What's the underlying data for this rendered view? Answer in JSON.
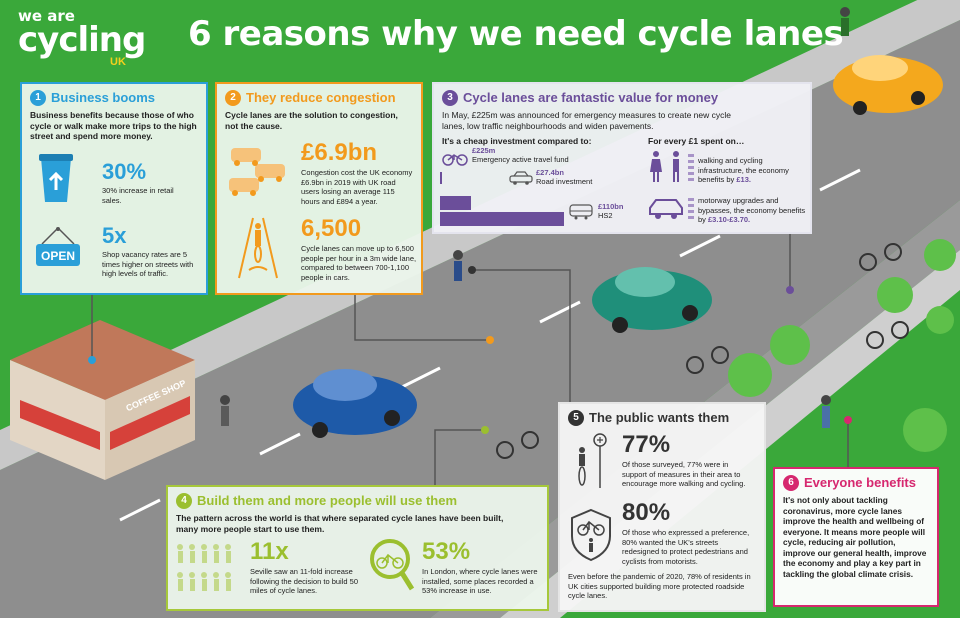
{
  "logo": {
    "line1": "we are",
    "line2": "cycling",
    "line3": "UK"
  },
  "title": "6 reasons why we need cycle lanes",
  "colors": {
    "blue": "#2a9fd8",
    "orange": "#f29a1d",
    "purple": "#6b4e9a",
    "lime": "#9bbf2f",
    "dark": "#333333",
    "magenta": "#d6286f",
    "grass": "#3aa83a"
  },
  "s1": {
    "num": "1",
    "heading": "Business booms",
    "intro": "Business benefits because those of who cycle or walk make more trips to the high street and spend more money.",
    "stat1": "30%",
    "stat1_text": "30% increase in retail sales.",
    "stat2": "5x",
    "stat2_text": "Shop vacancy rates are 5 times higher on streets with high levels of traffic.",
    "icon1": "coffee-cup-icon",
    "icon2": "open-sign-icon",
    "sign_text": "OPEN"
  },
  "s2": {
    "num": "2",
    "heading": "They reduce congestion",
    "intro": "Cycle lanes are the solution to congestion, not the cause.",
    "stat1": "£6.9bn",
    "stat1_text": "Congestion cost the UK economy £6.9bn in 2019 with UK road users losing an average 115 hours and £894 a year.",
    "stat2": "6,500",
    "stat2_text": "Cycle lanes can move up to 6,500 people per hour in a 3m wide lane, compared to between 700-1,100 people in cars.",
    "icon1": "cars-icon",
    "icon2": "cycle-lane-icon"
  },
  "s3": {
    "num": "3",
    "heading": "Cycle lanes are fantastic value for money",
    "intro": "In May, £225m was announced for emergency measures to create new cycle lanes, low traffic neighbourhoods and widen pavements.",
    "compare_heading": "It's a cheap investment compared to:",
    "bars": [
      {
        "value_label": "£225m",
        "label": "Emergency active travel fund",
        "value_bn": 0.225,
        "icon": "bike-icon"
      },
      {
        "value_label": "£27.4bn",
        "label": "Road investment",
        "value_bn": 27.4,
        "icon": "car-icon"
      },
      {
        "value_label": "£110bn",
        "label": "HS2",
        "value_bn": 110,
        "icon": "train-icon"
      }
    ],
    "every_heading": "For every £1 spent on…",
    "benefit1_text": "walking and cycling infrastructure, the economy benefits by",
    "benefit1_value": "£13.",
    "benefit2_text": "motorway upgrades and bypasses, the economy benefits by",
    "benefit2_value": "£3.10-£3.70."
  },
  "s4": {
    "num": "4",
    "heading": "Build them and more people will use them",
    "intro": "The pattern across the world is that where separated cycle lanes have been built, many more people start to use them.",
    "stat1": "11x",
    "stat1_text": "Seville saw an 11-fold increase following the decision to build 50 miles of cycle lanes.",
    "stat2": "53%",
    "stat2_text": "In London, where cycle lanes were installed, some places recorded a 53% increase in use.",
    "icon1": "people-grid-icon",
    "icon2": "magnifier-bike-icon"
  },
  "s5": {
    "num": "5",
    "heading": "The public wants them",
    "stat1": "77%",
    "stat1_text": "Of those surveyed, 77% were in support of measures in their area to encourage more walking and cycling.",
    "stat2": "80%",
    "stat2_text": "Of those who expressed a preference, 80% wanted the UK's streets redesigned to protect pedestrians and cyclists from motorists.",
    "footer": "Even before the pandemic of 2020, 78% of residents in UK cities supported building more protected roadside cycle lanes.",
    "icon1": "cycle-sign-icon",
    "icon2": "shield-icon"
  },
  "s6": {
    "num": "6",
    "heading": "Everyone benefits",
    "body": "It's not only about tackling coronavirus, more cycle lanes improve the health and wellbeing of everyone. It means more people will cycle, reducing air pollution, improve our general health, improve the economy and play a key part in tackling the global climate crisis."
  },
  "scene": {
    "shop_sign": "COFFEE SHOP"
  }
}
